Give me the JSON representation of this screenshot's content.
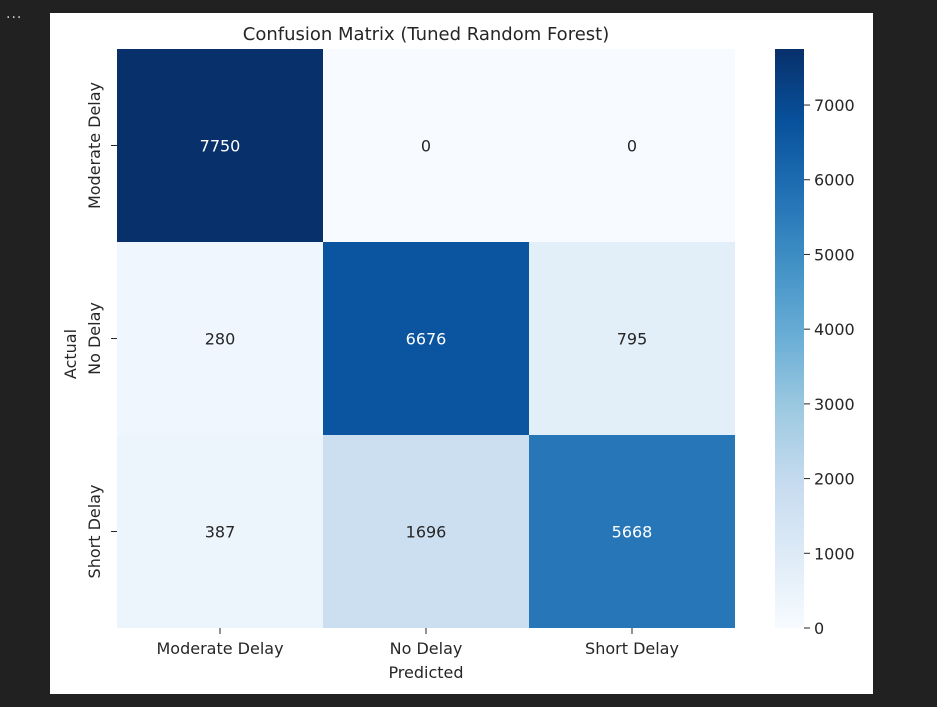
{
  "cell_menu": "...",
  "chart_data": {
    "type": "heatmap",
    "title": "Confusion Matrix (Tuned Random Forest)",
    "xlabel": "Predicted",
    "ylabel": "Actual",
    "x_categories": [
      "Moderate Delay",
      "No Delay",
      "Short Delay"
    ],
    "y_categories": [
      "Moderate Delay",
      "No Delay",
      "Short Delay"
    ],
    "values": [
      [
        7750,
        0,
        0
      ],
      [
        280,
        6676,
        795
      ],
      [
        387,
        1696,
        5668
      ]
    ],
    "colormap": "Blues",
    "vmin": 0,
    "vmax": 7750,
    "colorbar_ticks": [
      0,
      1000,
      2000,
      3000,
      4000,
      5000,
      6000,
      7000
    ],
    "colors": {
      "low": "#f7fbff",
      "high": "#08306b",
      "text_dark": "#262626",
      "text_light": "#ffffff"
    }
  }
}
